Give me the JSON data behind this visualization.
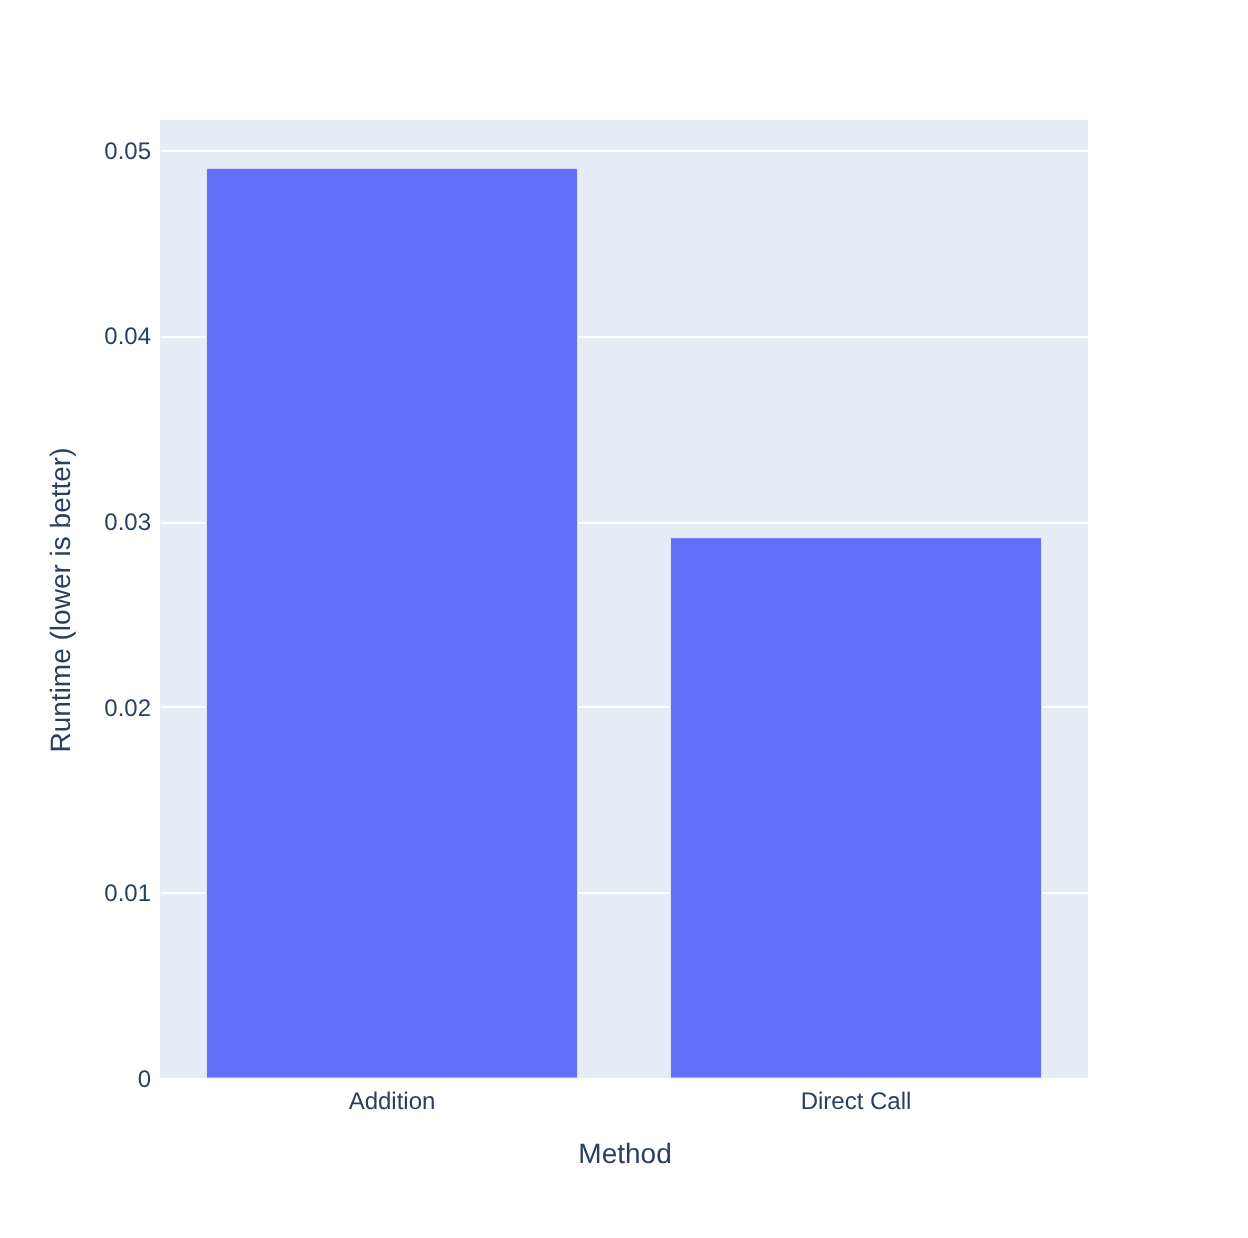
{
  "chart_data": {
    "type": "bar",
    "categories": [
      "Addition",
      "Direct Call"
    ],
    "values": [
      0.049,
      0.0291
    ],
    "color": "#636efa",
    "xlabel": "Method",
    "ylabel": "Runtime (lower is better)",
    "ylim": [
      0,
      0.0516
    ],
    "yticks": [
      0,
      0.01,
      0.02,
      0.03,
      0.04,
      0.05
    ],
    "grid": "y"
  }
}
